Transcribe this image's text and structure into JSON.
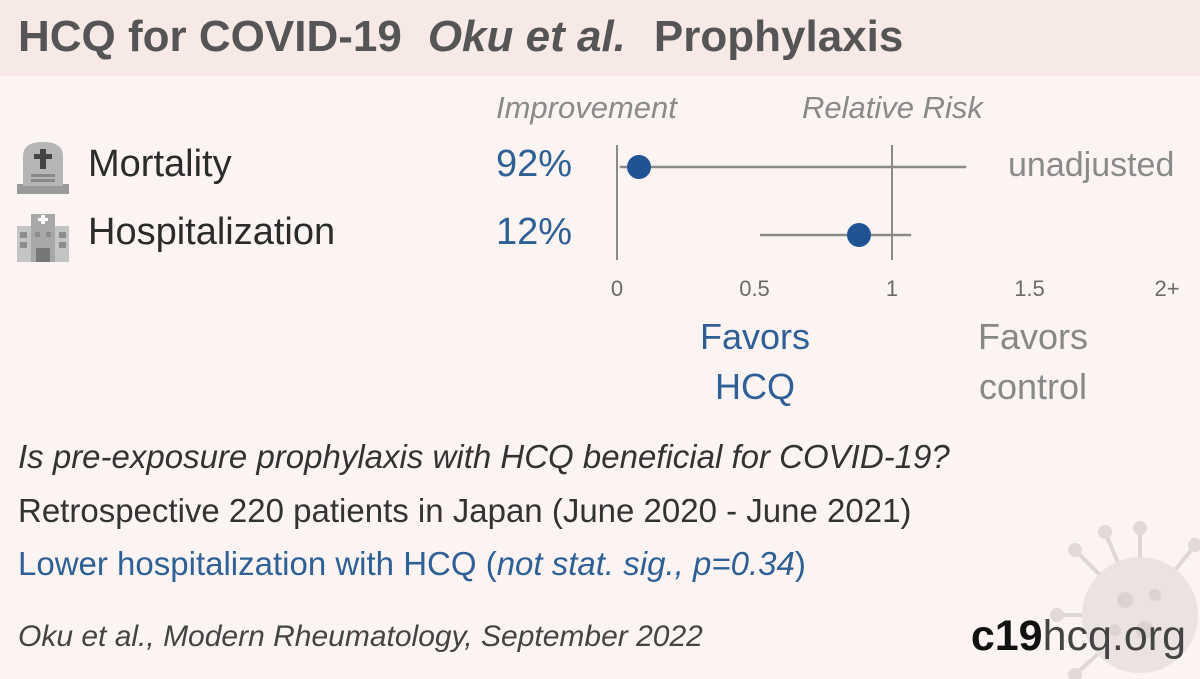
{
  "header": {
    "drug_topic": "HCQ for COVID-19",
    "study": "Oku et al.",
    "setting": "Prophylaxis"
  },
  "columns": {
    "improvement": "Improvement",
    "relative_risk": "Relative Risk"
  },
  "outcomes": [
    {
      "label": "Mortality",
      "improvement": "92%",
      "icon": "tombstone-icon",
      "note": "unadjusted"
    },
    {
      "label": "Hospitalization",
      "improvement": "12%",
      "icon": "hospital-icon",
      "note": ""
    }
  ],
  "favors": {
    "left": [
      "Favors",
      "HCQ"
    ],
    "right": [
      "Favors",
      "control"
    ]
  },
  "summary": {
    "question": "Is pre-exposure prophylaxis with HCQ beneficial for COVID-19?",
    "design": "Retrospective 220 patients in Japan (June 2020 - June 2021)",
    "result_main": "Lower hospitalization with HCQ (",
    "result_note": "not stat. sig., p=0.34",
    "result_close": ")"
  },
  "citation": "Oku et al., Modern Rheumatology, September 2022",
  "brand": {
    "part1": "c19",
    "part2": "hcq.org"
  },
  "chart_data": {
    "type": "scatter",
    "title": "",
    "xlabel": "Relative Risk",
    "xlim": [
      0,
      2
    ],
    "ticks": [
      0,
      0.5,
      1,
      1.5,
      2
    ],
    "tick_labels": [
      "0",
      "0.5",
      "1",
      "1.5",
      "2+"
    ],
    "reference_line": 1,
    "series": [
      {
        "outcome": "Mortality",
        "rr": 0.08,
        "ci_low": 0.01,
        "ci_high": 1.27
      },
      {
        "outcome": "Hospitalization",
        "rr": 0.88,
        "ci_low": 0.52,
        "ci_high": 1.07
      }
    ],
    "colors": {
      "point": "#1f5392",
      "lines": "#8a8a8a",
      "ticks": "#6a6a6a"
    }
  }
}
